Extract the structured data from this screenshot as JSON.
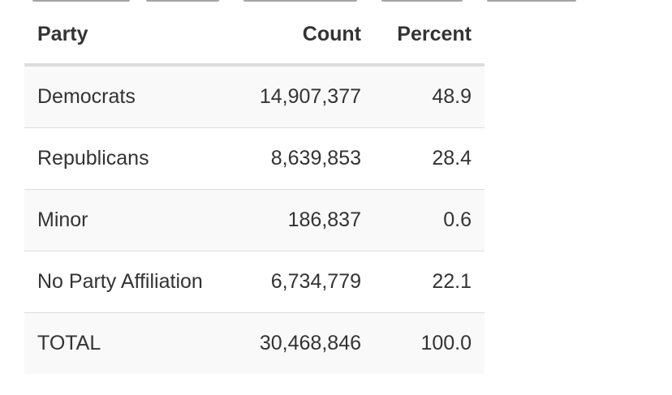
{
  "table": {
    "headers": {
      "party": "Party",
      "count": "Count",
      "percent": "Percent"
    },
    "rows": [
      {
        "party": "Democrats",
        "count": "14,907,377",
        "percent": "48.9"
      },
      {
        "party": "Republicans",
        "count": "8,639,853",
        "percent": "28.4"
      },
      {
        "party": "Minor",
        "count": "186,837",
        "percent": "0.6"
      },
      {
        "party": "No Party Affiliation",
        "count": "6,734,779",
        "percent": "22.1"
      },
      {
        "party": "TOTAL",
        "count": "30,468,846",
        "percent": "100.0"
      }
    ]
  },
  "colors": {
    "text": "#333333",
    "row_stripe": "#f9f9f9",
    "row_plain": "#ffffff",
    "rule": "#dddddd"
  }
}
